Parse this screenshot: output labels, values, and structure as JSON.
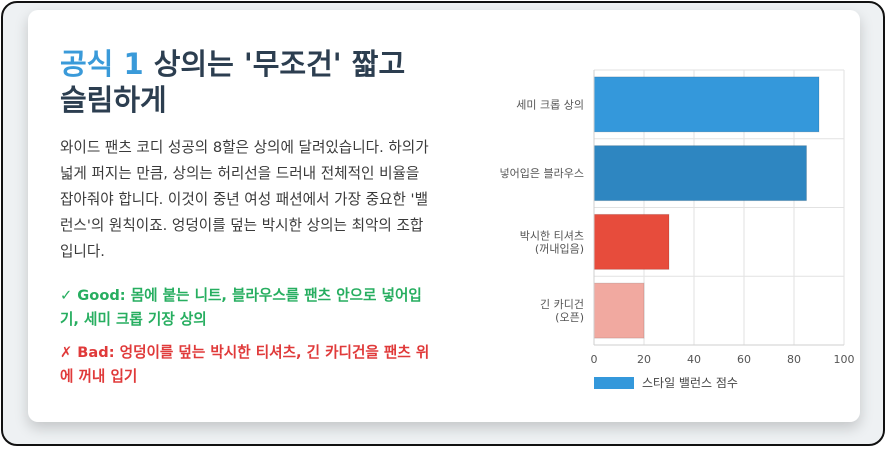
{
  "heading": {
    "prefix": "공식 1",
    "main": " 상의는 '무조건' 짧고 슬림하게"
  },
  "body": "와이드 팬츠 코디 성공의 8할은 상의에 달려있습니다. 하의가 넓게 퍼지는 만큼, 상의는 허리선을 드러내 전체적인 비율을 잡아줘야 합니다. 이것이 중년 여성 패션에서 가장 중요한 '밸런스'의 원칙이죠. 엉덩이를 덮는 박시한 상의는 최악의 조합입니다.",
  "good": "✓ Good: 몸에 붙는 니트, 블라우스를 팬츠 안으로 넣어입기, 세미 크롭 기장 상의",
  "bad": "✗ Bad: 엉덩이를 덮는 박시한 티셔츠, 긴 카디건을 팬츠 위에 꺼내 입기",
  "colors": {
    "accent": "#3a9ad9",
    "good": "#27ae60",
    "bad": "#e03a3a"
  },
  "chart_data": {
    "type": "bar",
    "orientation": "horizontal",
    "categories": [
      [
        "세미 크롭 상의"
      ],
      [
        "넣어입은 블라우스"
      ],
      [
        "박시한 티셔츠",
        "(꺼내입음)"
      ],
      [
        "긴 카디건",
        "(오픈)"
      ]
    ],
    "series": [
      {
        "name": "스타일 밸런스 점수",
        "values": [
          90,
          85,
          30,
          20
        ],
        "colors": [
          "#3498db",
          "#2e86c1",
          "#e74c3c",
          "#f1a9a0"
        ]
      }
    ],
    "xlim": [
      0,
      100
    ],
    "xticks": [
      "0",
      "20",
      "40",
      "60",
      "80",
      "100"
    ],
    "grid": true,
    "legend_position": "bottom-left"
  }
}
